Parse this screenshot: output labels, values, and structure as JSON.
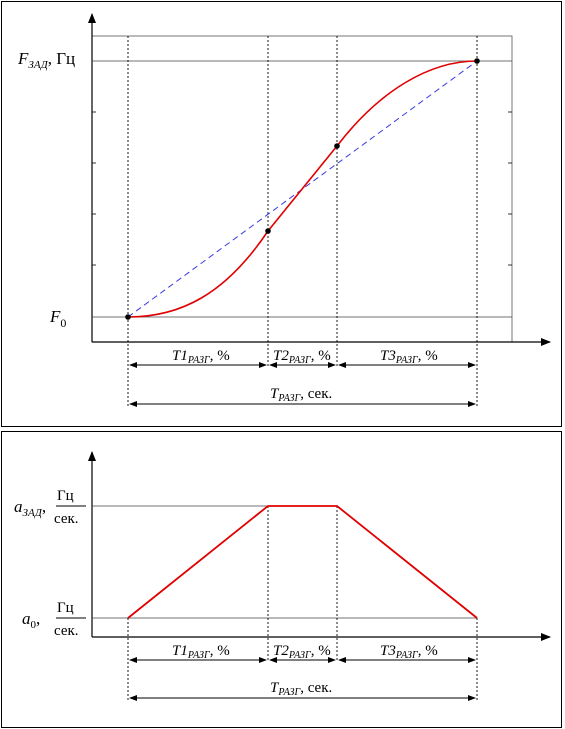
{
  "top_chart": {
    "y_label_main": "F",
    "y_label_sub": "ЗАД",
    "y_label_unit": ", Гц",
    "y_origin_main": "F",
    "y_origin_sub": "0",
    "segment1_main": "T1",
    "segment1_sub": "РАЗГ",
    "segment1_unit": ", %",
    "segment2_main": "T2",
    "segment2_sub": "РАЗГ",
    "segment2_unit": ", %",
    "segment3_main": "T3",
    "segment3_sub": "РАЗГ",
    "segment3_unit": ", %",
    "total_main": "T",
    "total_sub": "РАЗГ",
    "total_unit": ", сек.",
    "curve_color": "#e00000",
    "linear_color": "#3a3ae0"
  },
  "bottom_chart": {
    "y_label_main": "a",
    "y_label_sub": "ЗАД",
    "y_origin_main": "a",
    "y_origin_sub": "0",
    "unit_num": "Гц",
    "unit_den": "сек.",
    "segment1_main": "T1",
    "segment1_sub": "РАЗГ",
    "segment1_unit": ", %",
    "segment2_main": "T2",
    "segment2_sub": "РАЗГ",
    "segment2_unit": ", %",
    "segment3_main": "T3",
    "segment3_sub": "РАЗГ",
    "segment3_unit": ", %",
    "total_main": "T",
    "total_sub": "РАЗГ",
    "total_unit": ", сек.",
    "curve_color": "#e00000"
  }
}
